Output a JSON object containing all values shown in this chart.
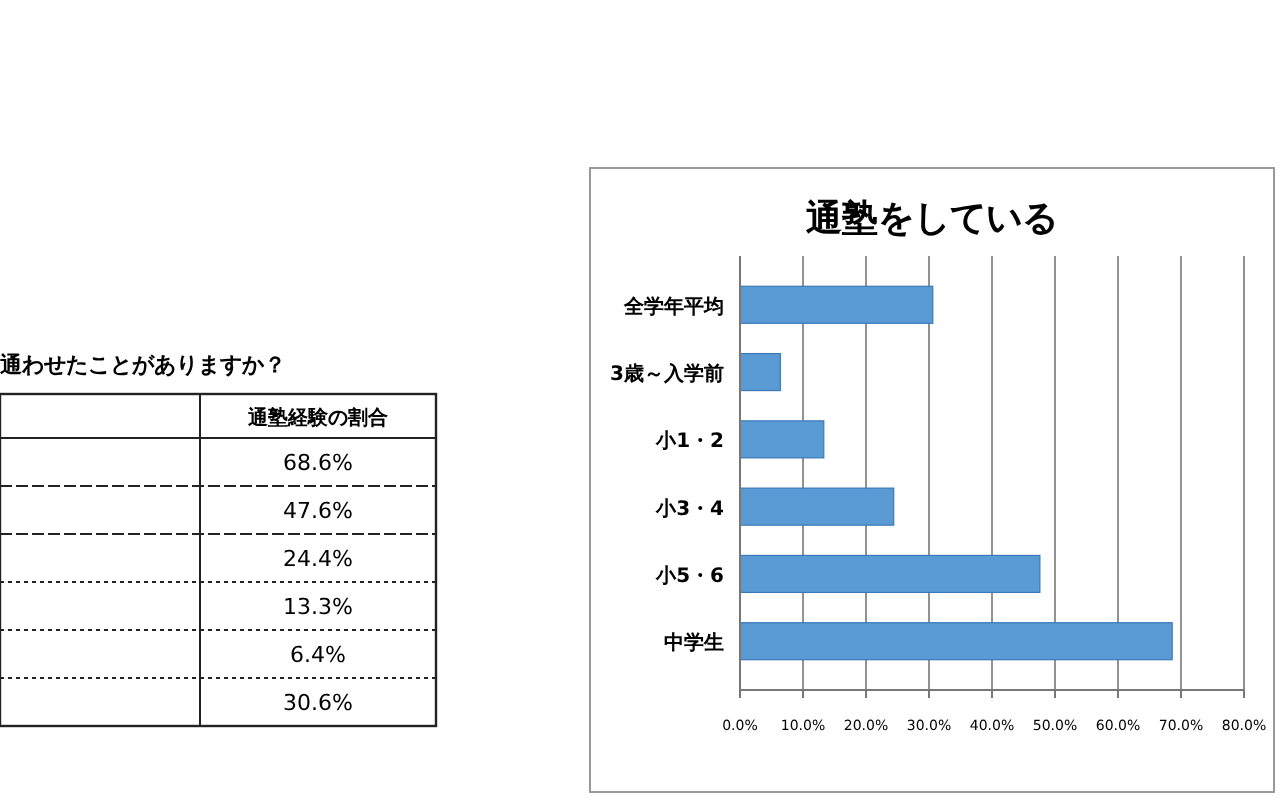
{
  "chart_data": [
    {
      "type": "other",
      "title": "通わせたことがありますか？",
      "annotations": [
        "通塾経験の割合",
        "68.6%",
        "47.6%",
        "24.4%",
        "13.3%",
        "6.4%",
        "30.6%"
      ]
    },
    {
      "type": "bar",
      "orientation": "horizontal",
      "title": "通塾をしている",
      "categories": [
        "全学年平均",
        "3歳～入学前",
        "小1・2",
        "小3・4",
        "小5・6",
        "中学生"
      ],
      "values": [
        30.6,
        6.4,
        13.3,
        24.4,
        47.6,
        68.6
      ],
      "color": "#5b9bd5",
      "xlim": [
        0,
        80
      ],
      "xticks": [
        {
          "value": 0,
          "label": "0.0%"
        },
        {
          "value": 10,
          "label": "10.0%"
        },
        {
          "value": 20,
          "label": "20.0%"
        },
        {
          "value": 30,
          "label": "30.0%"
        },
        {
          "value": 40,
          "label": "40.0%"
        },
        {
          "value": 50,
          "label": "50.0%"
        },
        {
          "value": 60,
          "label": "60.0%"
        },
        {
          "value": 70,
          "label": "70.0%"
        },
        {
          "value": 80,
          "label": "80.0%"
        }
      ],
      "grid": "x"
    }
  ]
}
